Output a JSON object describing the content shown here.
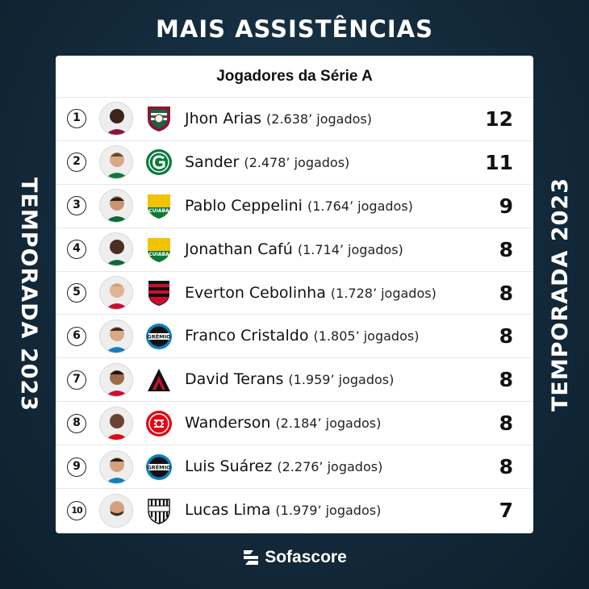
{
  "title": "MAIS ASSISTÊNCIAS",
  "side_label": "TEMPORADA 2023",
  "card_header": "Jogadores da Série A",
  "brand": "Sofascore",
  "players": [
    {
      "rank": "1",
      "name": "Jhon Arias",
      "minutes": "(2.638’ jogados)",
      "value": "12",
      "club": "fluminense"
    },
    {
      "rank": "2",
      "name": "Sander",
      "minutes": "(2.478’ jogados)",
      "value": "11",
      "club": "goias"
    },
    {
      "rank": "3",
      "name": "Pablo Ceppelini",
      "minutes": "(1.764’ jogados)",
      "value": "9",
      "club": "cuiaba"
    },
    {
      "rank": "4",
      "name": "Jonathan Cafú",
      "minutes": "(1.714’ jogados)",
      "value": "8",
      "club": "cuiaba"
    },
    {
      "rank": "5",
      "name": "Everton Cebolinha",
      "minutes": "(1.728’ jogados)",
      "value": "8",
      "club": "flamengo"
    },
    {
      "rank": "6",
      "name": "Franco Cristaldo",
      "minutes": "(1.805’ jogados)",
      "value": "8",
      "club": "gremio"
    },
    {
      "rank": "7",
      "name": "David Terans",
      "minutes": "(1.959’ jogados)",
      "value": "8",
      "club": "athletico-pr"
    },
    {
      "rank": "8",
      "name": "Wanderson",
      "minutes": "(2.184’ jogados)",
      "value": "8",
      "club": "internacional"
    },
    {
      "rank": "9",
      "name": "Luis Suárez",
      "minutes": "(2.276’ jogados)",
      "value": "8",
      "club": "gremio"
    },
    {
      "rank": "10",
      "name": "Lucas Lima",
      "minutes": "(1.979’ jogados)",
      "value": "7",
      "club": "santos"
    }
  ],
  "crest_text": {
    "cuiaba": "CUIABA",
    "gremio": "GRÊMIO"
  },
  "colors": {
    "background": "#132a3b",
    "card": "#ffffff",
    "fluminense": "#8a1538",
    "goias": "#0a7a3b",
    "cuiaba": "#f2c300",
    "flamengo": "#c8102e",
    "gremio": "#0d80bf",
    "athletico": "#c8102e",
    "internacional": "#e30613",
    "santos": "#111111"
  }
}
